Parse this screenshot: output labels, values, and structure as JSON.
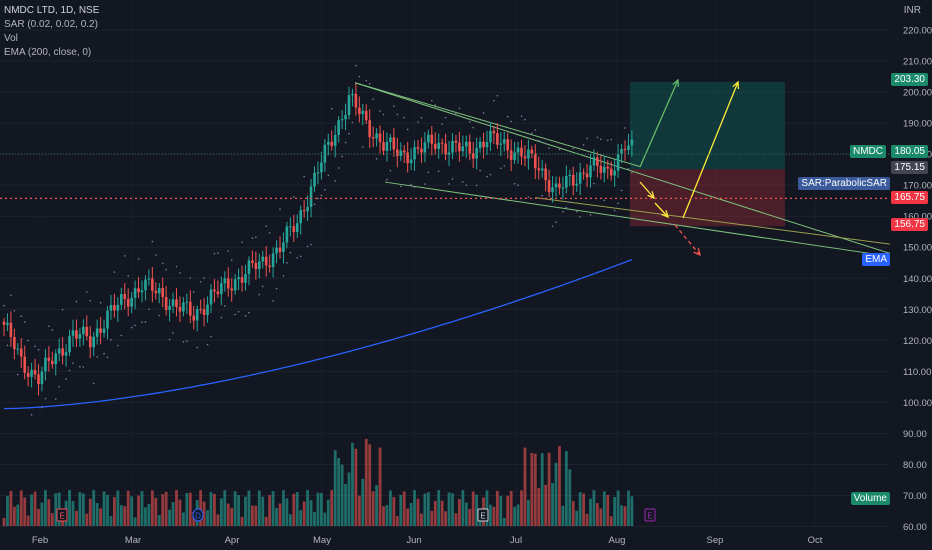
{
  "legend": {
    "symbol": "NMDC LTD, 1D, NSE",
    "sar": "SAR (0.02, 0.02, 0.2)",
    "vol": "Vol",
    "ema": "EMA (200, close, 0)"
  },
  "currency": "INR",
  "price_tags": {
    "target": "203.30",
    "symbol_name": "NMDC",
    "last": "180.05",
    "entry": "175.15",
    "sar_label": "SAR:ParabolicSAR",
    "support": "165.75",
    "stop": "156.75",
    "ema_label": "EMA",
    "volume_label": "Volume"
  },
  "colors": {
    "background": "#131722",
    "up": "#26a69a",
    "down": "#ef5350",
    "ema": "#2962ff",
    "trendline": "#7ec37e",
    "arrow_green": "#66bb6a",
    "arrow_yellow": "#ffeb3b",
    "sar_dots": "#7b7f9e"
  },
  "chart_data": {
    "type": "candlestick",
    "y_axis_ticks": [
      60,
      70,
      80,
      90,
      100,
      110,
      120,
      130,
      140,
      150,
      160,
      170,
      180,
      190,
      200,
      210,
      220
    ],
    "ylim": [
      60,
      222
    ],
    "x_axis_labels": [
      "Feb",
      "Mar",
      "Apr",
      "May",
      "Jun",
      "Jul",
      "Aug",
      "Sep",
      "Oct"
    ],
    "series": [
      {
        "name": "NMDC LTD, 1D, NSE",
        "kind": "ohlc",
        "keypoints": [
          [
            0,
            125
          ],
          [
            5,
            113
          ],
          [
            10,
            108
          ],
          [
            15,
            115
          ],
          [
            20,
            122
          ],
          [
            25,
            120
          ],
          [
            30,
            128
          ],
          [
            35,
            133
          ],
          [
            40,
            138
          ],
          [
            45,
            135
          ],
          [
            50,
            131
          ],
          [
            55,
            128
          ],
          [
            60,
            134
          ],
          [
            65,
            138
          ],
          [
            70,
            142
          ],
          [
            75,
            145
          ],
          [
            80,
            150
          ],
          [
            85,
            158
          ],
          [
            90,
            172
          ],
          [
            95,
            185
          ],
          [
            100,
            198
          ],
          [
            105,
            190
          ],
          [
            110,
            183
          ],
          [
            115,
            180
          ],
          [
            120,
            181
          ],
          [
            125,
            184
          ],
          [
            130,
            182
          ],
          [
            135,
            181
          ],
          [
            140,
            185
          ],
          [
            145,
            183
          ],
          [
            150,
            180
          ],
          [
            155,
            176
          ],
          [
            160,
            168
          ],
          [
            165,
            172
          ],
          [
            170,
            176
          ],
          [
            175,
            174
          ],
          [
            180,
            183
          ],
          [
            182,
            181
          ]
        ]
      },
      {
        "name": "EMA (200, close, 0)",
        "kind": "line",
        "start": 98,
        "end": 146
      },
      {
        "name": "Vol",
        "kind": "volume",
        "min": 50,
        "max": 100
      }
    ],
    "levels": {
      "target": 203.3,
      "last": 180.05,
      "entry": 175.15,
      "support": 165.75,
      "stop": 156.75
    },
    "markers": [
      "E",
      "D",
      "E",
      "E"
    ]
  }
}
